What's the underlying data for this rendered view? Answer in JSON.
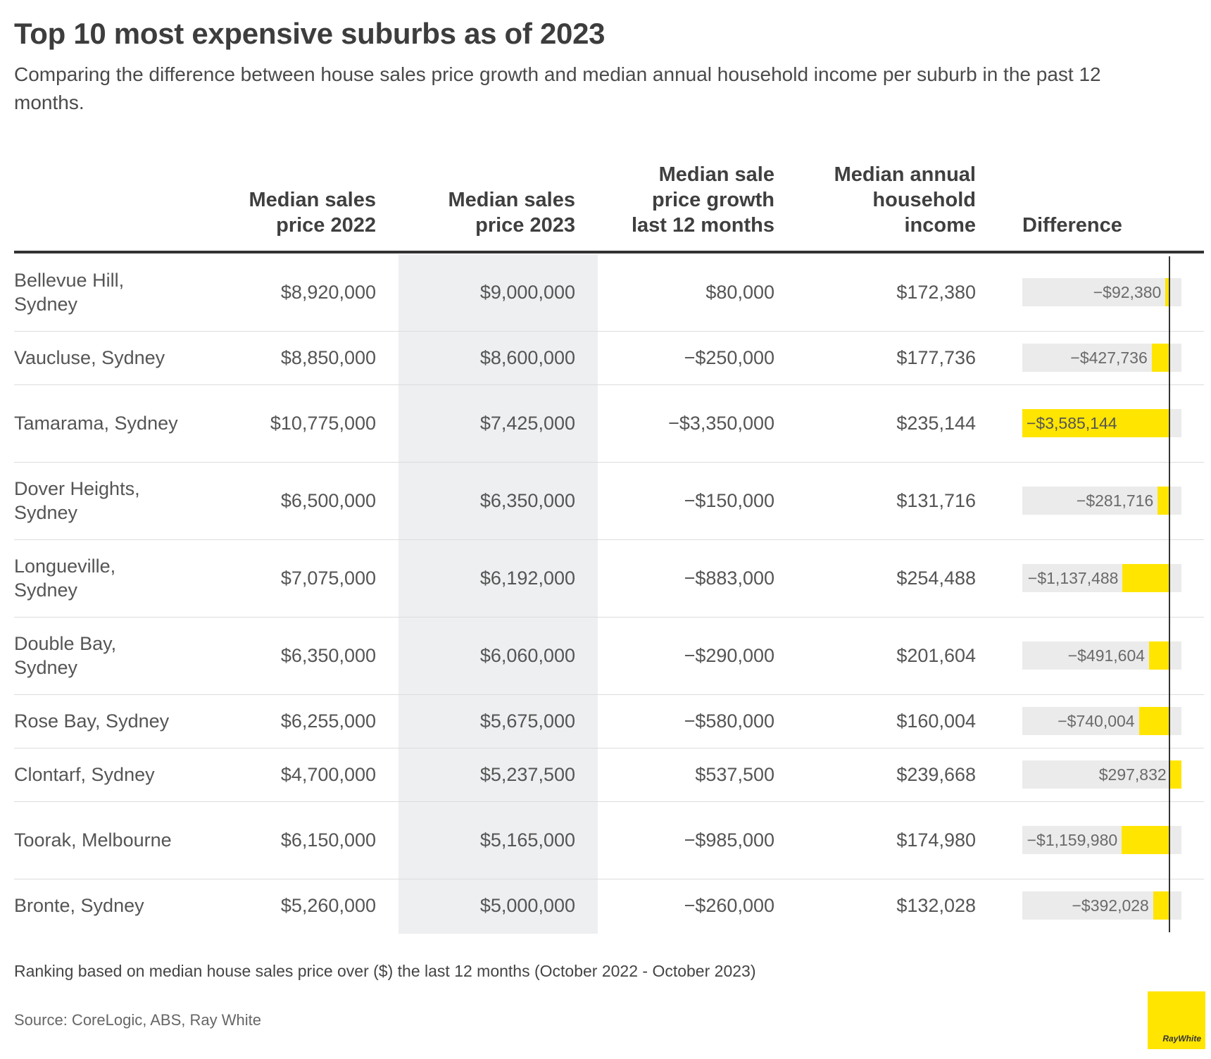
{
  "title": "Top 10 most expensive suburbs as of 2023",
  "subtitle": "Comparing the difference between house sales price growth and median annual household income per suburb in the past 12 months.",
  "headers": {
    "price2022": "Median sales\nprice 2022",
    "price2023": "Median sales\nprice 2023",
    "growth": "Median sale\nprice growth\nlast 12 months",
    "income": "Median annual\nhousehold\nincome",
    "difference": "Difference"
  },
  "chart_data": {
    "type": "table",
    "columns": [
      "Median sales price 2022",
      "Median sales price 2023",
      "Median sale price growth last 12 months",
      "Median annual household income",
      "Difference"
    ],
    "rows": [
      {
        "suburb": "Bellevue Hill, Sydney",
        "price2022": "$8,920,000",
        "price2023": "$9,000,000",
        "growth": "$80,000",
        "income": "$172,380",
        "difference_label": "−$92,380",
        "difference": -92380
      },
      {
        "suburb": "Vaucluse, Sydney",
        "price2022": "$8,850,000",
        "price2023": "$8,600,000",
        "growth": "−$250,000",
        "income": "$177,736",
        "difference_label": "−$427,736",
        "difference": -427736
      },
      {
        "suburb": "Tamarama, Sydney",
        "price2022": "$10,775,000",
        "price2023": "$7,425,000",
        "growth": "−$3,350,000",
        "income": "$235,144",
        "difference_label": "−$3,585,144",
        "difference": -3585144
      },
      {
        "suburb": "Dover Heights, Sydney",
        "price2022": "$6,500,000",
        "price2023": "$6,350,000",
        "growth": "−$150,000",
        "income": "$131,716",
        "difference_label": "−$281,716",
        "difference": -281716
      },
      {
        "suburb": "Longueville, Sydney",
        "price2022": "$7,075,000",
        "price2023": "$6,192,000",
        "growth": "−$883,000",
        "income": "$254,488",
        "difference_label": "−$1,137,488",
        "difference": -1137488
      },
      {
        "suburb": "Double Bay, Sydney",
        "price2022": "$6,350,000",
        "price2023": "$6,060,000",
        "growth": "−$290,000",
        "income": "$201,604",
        "difference_label": "−$491,604",
        "difference": -491604
      },
      {
        "suburb": "Rose Bay, Sydney",
        "price2022": "$6,255,000",
        "price2023": "$5,675,000",
        "growth": "−$580,000",
        "income": "$160,004",
        "difference_label": "−$740,004",
        "difference": -740004
      },
      {
        "suburb": "Clontarf, Sydney",
        "price2022": "$4,700,000",
        "price2023": "$5,237,500",
        "growth": "$537,500",
        "income": "$239,668",
        "difference_label": "$297,832",
        "difference": 297832
      },
      {
        "suburb": "Toorak, Melbourne",
        "price2022": "$6,150,000",
        "price2023": "$5,165,000",
        "growth": "−$985,000",
        "income": "$174,980",
        "difference_label": "−$1,159,980",
        "difference": -1159980
      },
      {
        "suburb": "Bronte, Sydney",
        "price2022": "$5,260,000",
        "price2023": "$5,000,000",
        "growth": "−$260,000",
        "income": "$132,028",
        "difference_label": "−$392,028",
        "difference": -392028
      }
    ],
    "difference_axis": {
      "min": -3585144,
      "max": 297832
    }
  },
  "note": "Ranking based on median house sales price over ($) the last 12 months (October 2022 - October 2023)",
  "source": "Source: CoreLogic, ABS, Ray White",
  "logo_text": "RayWhite",
  "colors": {
    "bar": "#ffe500",
    "bar_track": "#ebebeb",
    "highlight_column": "#eeeff1",
    "text": "#333333"
  }
}
